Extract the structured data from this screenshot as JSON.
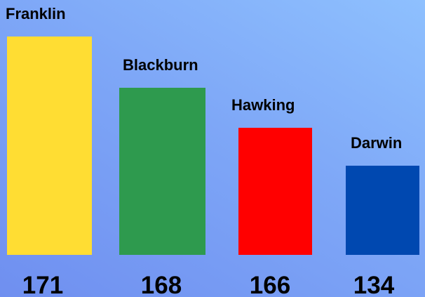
{
  "chart_data": {
    "type": "bar",
    "categories": [
      "Franklin",
      "Blackburn",
      "Hawking",
      "Darwin"
    ],
    "values": [
      171,
      168,
      166,
      134
    ],
    "colors": [
      "#ffdd33",
      "#2e9a4e",
      "#ff0000",
      "#0048b0"
    ],
    "title": "",
    "xlabel": "",
    "ylabel": "",
    "grid": false,
    "legend": "none"
  }
}
